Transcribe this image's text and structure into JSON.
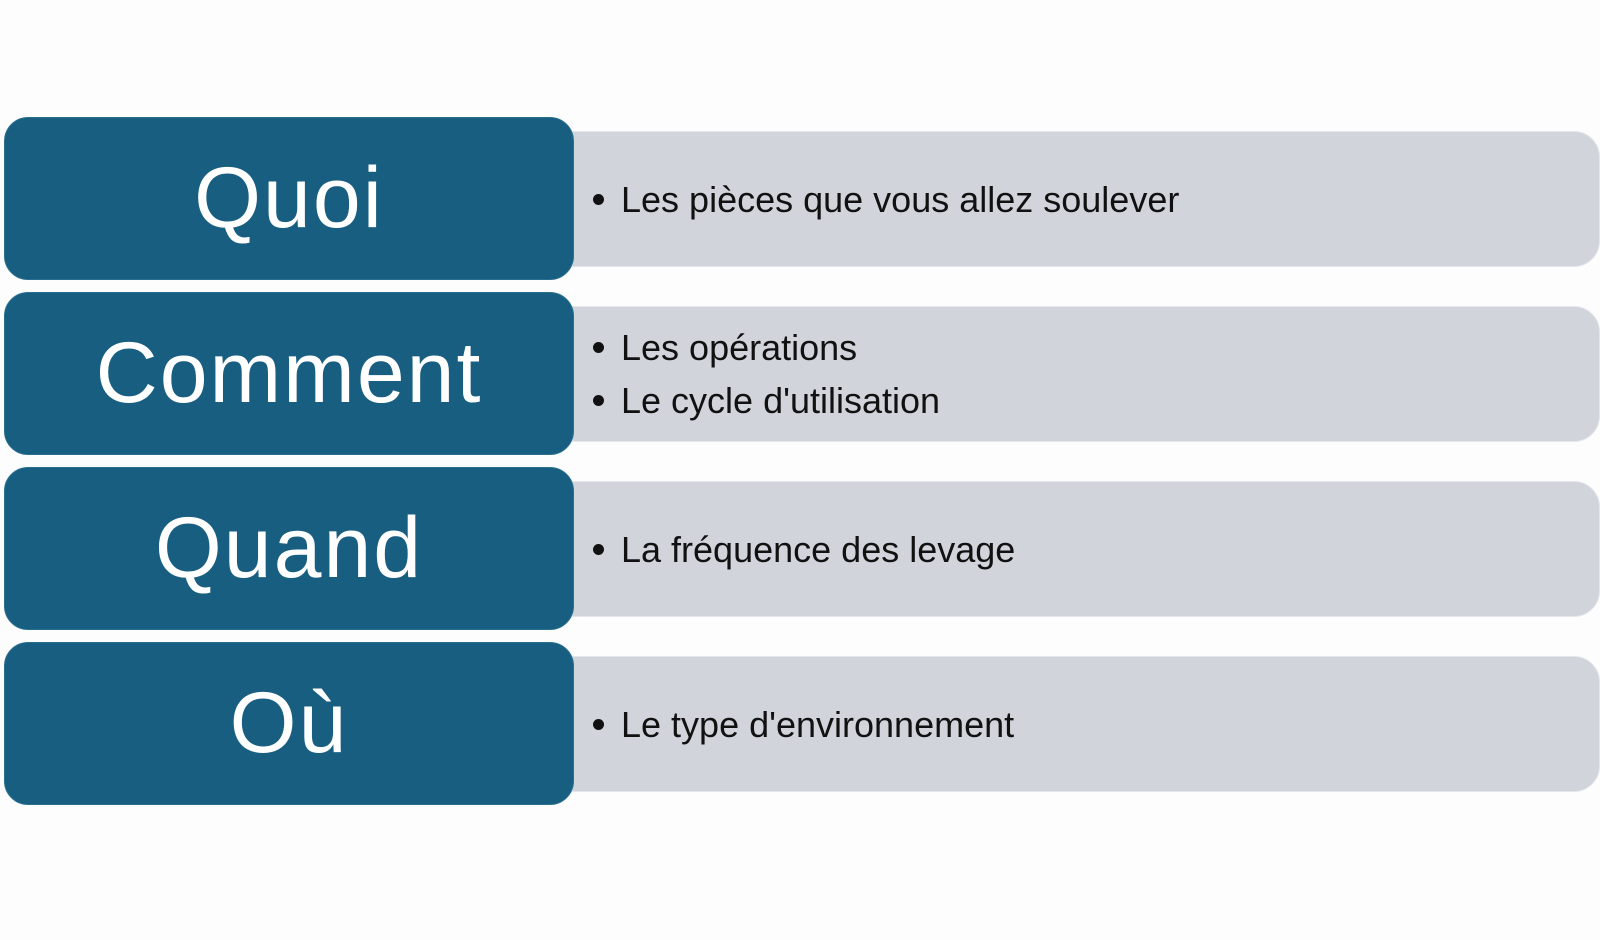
{
  "colors": {
    "key_fill": "#175e80",
    "detail_fill": "#d1d5db"
  },
  "rows": [
    {
      "key": "Quoi",
      "items": [
        "Les pièces que vous allez soulever"
      ]
    },
    {
      "key": "Comment",
      "items": [
        "Les opérations",
        "Le cycle d'utilisation"
      ]
    },
    {
      "key": "Quand",
      "items": [
        "La fréquence des levage"
      ]
    },
    {
      "key": "Où",
      "items": [
        "Le type d'environnement"
      ]
    }
  ]
}
